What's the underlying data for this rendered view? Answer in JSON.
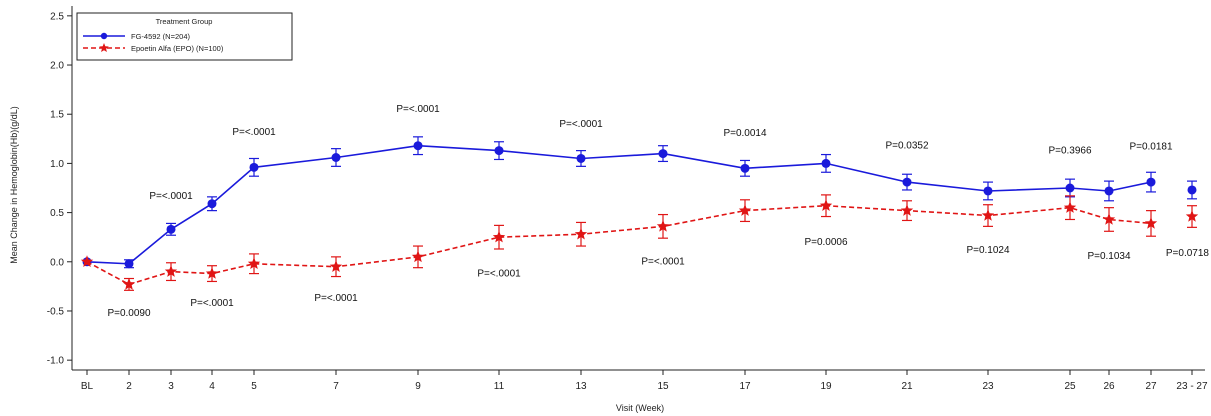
{
  "chart_data": {
    "type": "line",
    "title": "",
    "xlabel": "Visit (Week)",
    "ylabel": "Mean Change in Hemoglobin(Hb)(g/dL)",
    "ylim": [
      -1.1,
      2.6
    ],
    "yticks": [
      "2.5",
      "2.0",
      "1.5",
      "1.0",
      "0.5",
      "0.0",
      "-0.5",
      "-1.0"
    ],
    "ytick_values": [
      2.5,
      2.0,
      1.5,
      1.0,
      0.5,
      0.0,
      -0.5,
      -1.0
    ],
    "categories": [
      "BL",
      "2",
      "3",
      "4",
      "5",
      "7",
      "9",
      "11",
      "13",
      "15",
      "17",
      "19",
      "21",
      "23",
      "25",
      "26",
      "27",
      "23 - 27"
    ],
    "grid": false,
    "legend": {
      "title": "Treatment Group",
      "position": "top-left"
    },
    "series": [
      {
        "name": "FG-4592 (N=204)",
        "color": "#1a1adb",
        "marker": "circle",
        "line": "solid",
        "values": [
          0.0,
          -0.02,
          0.33,
          0.59,
          0.96,
          1.06,
          1.18,
          1.13,
          1.05,
          1.1,
          0.95,
          1.0,
          0.81,
          0.72,
          0.75,
          0.72,
          0.81,
          0.73
        ],
        "errors": [
          0.0,
          0.04,
          0.06,
          0.07,
          0.09,
          0.09,
          0.09,
          0.09,
          0.08,
          0.08,
          0.08,
          0.09,
          0.08,
          0.09,
          0.09,
          0.1,
          0.1,
          0.09
        ]
      },
      {
        "name": "Epoetin Alfa (EPO) (N=100)",
        "color": "#e01515",
        "marker": "star",
        "line": "dashed",
        "values": [
          0.0,
          -0.23,
          -0.1,
          -0.12,
          -0.02,
          -0.05,
          0.05,
          0.25,
          0.28,
          0.36,
          0.52,
          0.57,
          0.52,
          0.47,
          0.55,
          0.43,
          0.39,
          0.46
        ],
        "errors": [
          0.0,
          0.06,
          0.09,
          0.08,
          0.1,
          0.1,
          0.11,
          0.12,
          0.12,
          0.12,
          0.11,
          0.11,
          0.1,
          0.11,
          0.12,
          0.12,
          0.13,
          0.11
        ]
      }
    ],
    "annotations": [
      {
        "text": "P=0.0090",
        "category": "2",
        "y": -0.55
      },
      {
        "text": "P=<.0001",
        "category": "3",
        "y": 0.64
      },
      {
        "text": "P=<.0001",
        "category": "4",
        "y": -0.45
      },
      {
        "text": "P=<.0001",
        "category": "5",
        "y": 1.29
      },
      {
        "text": "P=<.0001",
        "category": "7",
        "y": -0.4
      },
      {
        "text": "P=<.0001",
        "category": "9",
        "y": 1.52
      },
      {
        "text": "P=<.0001",
        "category": "11",
        "y": -0.15
      },
      {
        "text": "P=<.0001",
        "category": "13",
        "y": 1.37
      },
      {
        "text": "P=<.0001",
        "category": "15",
        "y": -0.03
      },
      {
        "text": "P=0.0014",
        "category": "17",
        "y": 1.28
      },
      {
        "text": "P=0.0006",
        "category": "19",
        "y": 0.17
      },
      {
        "text": "P=0.0352",
        "category": "21",
        "y": 1.15
      },
      {
        "text": "P=0.1024",
        "category": "23",
        "y": 0.09
      },
      {
        "text": "P=0.3966",
        "category": "25",
        "y": 1.1
      },
      {
        "text": "P=0.1034",
        "category": "26",
        "y": 0.03
      },
      {
        "text": "P=0.0181",
        "category": "27",
        "y": 1.14
      },
      {
        "text": "P=0.0718",
        "category": "23 - 27",
        "y": 0.06
      }
    ]
  }
}
